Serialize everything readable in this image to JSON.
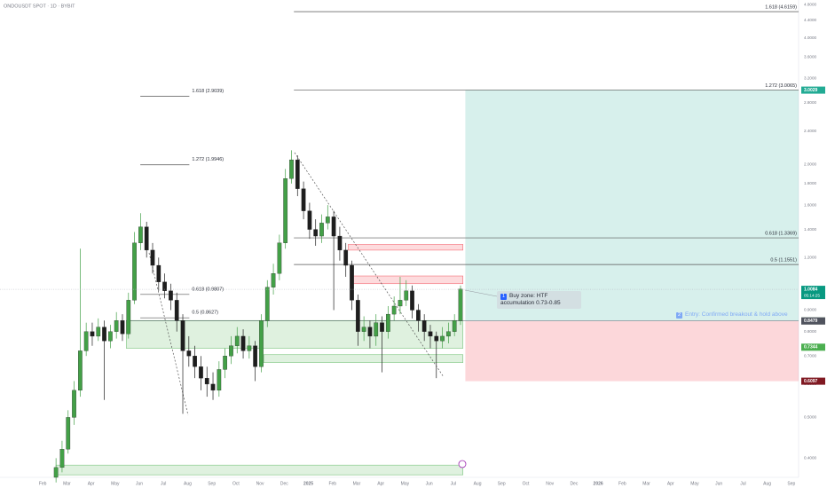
{
  "chart_data": {
    "type": "candlestick",
    "title": "ONDOUSDT SPOT · 1D · BYBIT",
    "log_scale": true,
    "grid": false,
    "xlim": [
      -1.77,
      31.3
    ],
    "ylim": [
      0.36,
      4.92
    ],
    "xticks": [
      {
        "value": 0,
        "label": "Feb"
      },
      {
        "value": 1,
        "label": "Mar"
      },
      {
        "value": 2,
        "label": "Apr"
      },
      {
        "value": 3,
        "label": "May"
      },
      {
        "value": 4,
        "label": "Jun"
      },
      {
        "value": 5,
        "label": "Jul"
      },
      {
        "value": 6,
        "label": "Aug"
      },
      {
        "value": 7,
        "label": "Sep"
      },
      {
        "value": 8,
        "label": "Oct"
      },
      {
        "value": 9,
        "label": "Nov"
      },
      {
        "value": 10,
        "label": "Dec"
      },
      {
        "value": 11,
        "label": "2025"
      },
      {
        "value": 12,
        "label": "Feb"
      },
      {
        "value": 13,
        "label": "Mar"
      },
      {
        "value": 14,
        "label": "Apr"
      },
      {
        "value": 15,
        "label": "May"
      },
      {
        "value": 16,
        "label": "Jun"
      },
      {
        "value": 17,
        "label": "Jul"
      },
      {
        "value": 18,
        "label": "Aug"
      },
      {
        "value": 19,
        "label": "Sep"
      },
      {
        "value": 20,
        "label": "Oct"
      },
      {
        "value": 21,
        "label": "Nov"
      },
      {
        "value": 22,
        "label": "Dec"
      },
      {
        "value": 23,
        "label": "2026"
      },
      {
        "value": 24,
        "label": "Feb"
      },
      {
        "value": 25,
        "label": "Mar"
      },
      {
        "value": 26,
        "label": "Apr"
      },
      {
        "value": 27,
        "label": "May"
      },
      {
        "value": 28,
        "label": "Jun"
      },
      {
        "value": 29,
        "label": "Jul"
      },
      {
        "value": 30,
        "label": "Aug"
      },
      {
        "value": 31,
        "label": "Sep"
      }
    ],
    "yticks": [
      {
        "value": 0.4,
        "label": "0.4000"
      },
      {
        "value": 0.5,
        "label": "0.5000"
      },
      {
        "value": 0.6,
        "label": "0.6000"
      },
      {
        "value": 0.7,
        "label": "0.7000"
      },
      {
        "value": 0.8,
        "label": "0.8000"
      },
      {
        "value": 0.9,
        "label": "0.9000"
      },
      {
        "value": 1.2,
        "label": "1.2000"
      },
      {
        "value": 1.4,
        "label": "1.4000"
      },
      {
        "value": 1.6,
        "label": "1.6000"
      },
      {
        "value": 1.8,
        "label": "1.8000"
      },
      {
        "value": 2,
        "label": "2.0000"
      },
      {
        "value": 2.4,
        "label": "2.4000"
      },
      {
        "value": 2.8,
        "label": "2.8000"
      },
      {
        "value": 3.2,
        "label": "3.2000"
      },
      {
        "value": 3.6,
        "label": "3.6000"
      },
      {
        "value": 4,
        "label": "4.0000"
      },
      {
        "value": 4.4,
        "label": "4.4000"
      },
      {
        "value": 4.8,
        "label": "4.8000"
      }
    ],
    "candles": {
      "up_color": "#43a047",
      "down_color": "#1e1e1e",
      "x": [
        0.55,
        0.8,
        1.05,
        1.3,
        1.55,
        1.8,
        2.05,
        2.3,
        2.55,
        2.8,
        3.05,
        3.3,
        3.55,
        3.8,
        4.05,
        4.3,
        4.55,
        4.8,
        5.05,
        5.3,
        5.55,
        5.8,
        6.05,
        6.3,
        6.55,
        6.8,
        7.05,
        7.3,
        7.55,
        7.8,
        8.05,
        8.3,
        8.55,
        8.8,
        9.05,
        9.3,
        9.55,
        9.8,
        10.05,
        10.3,
        10.55,
        10.8,
        11.05,
        11.3,
        11.55,
        11.8,
        12.05,
        12.3,
        12.55,
        12.8,
        13.05,
        13.3,
        13.55,
        13.8,
        14.05,
        14.3,
        14.55,
        14.8,
        15.05,
        15.3,
        15.55,
        15.8,
        16.05,
        16.3,
        16.55,
        16.8,
        17.05,
        17.3
      ],
      "open": [
        0.36,
        0.38,
        0.42,
        0.5,
        0.58,
        0.72,
        0.8,
        0.78,
        0.82,
        0.76,
        0.8,
        0.85,
        0.79,
        0.95,
        1.3,
        1.42,
        1.25,
        1.15,
        1.05,
        1.0,
        0.95,
        0.85,
        0.72,
        0.7,
        0.66,
        0.62,
        0.6,
        0.58,
        0.65,
        0.7,
        0.74,
        0.78,
        0.72,
        0.74,
        0.66,
        0.85,
        1.02,
        1.1,
        1.3,
        1.85,
        2.05,
        1.75,
        1.55,
        1.4,
        1.35,
        1.45,
        1.5,
        1.35,
        1.25,
        1.15,
        0.95,
        0.8,
        0.82,
        0.78,
        0.84,
        0.8,
        0.88,
        0.92,
        0.95,
        1.0,
        0.9,
        0.85,
        0.8,
        0.78,
        0.76,
        0.78,
        0.8,
        0.85
      ],
      "high": [
        0.4,
        0.44,
        0.52,
        0.61,
        1.26,
        0.84,
        0.84,
        0.86,
        0.85,
        0.83,
        0.89,
        0.88,
        0.99,
        1.38,
        1.53,
        1.46,
        1.3,
        1.2,
        1.1,
        1.04,
        0.99,
        0.88,
        0.78,
        0.74,
        0.7,
        0.66,
        0.64,
        0.68,
        0.73,
        0.78,
        0.82,
        0.81,
        0.78,
        0.76,
        0.88,
        1.06,
        1.16,
        1.36,
        1.95,
        2.16,
        2.1,
        1.82,
        1.62,
        1.48,
        1.52,
        1.6,
        1.55,
        1.42,
        1.3,
        1.18,
        0.98,
        0.87,
        0.85,
        0.88,
        0.87,
        0.92,
        0.97,
        1.08,
        1.06,
        1.03,
        0.93,
        0.88,
        0.83,
        0.8,
        0.82,
        0.84,
        0.88,
        1.03
      ],
      "low": [
        0.35,
        0.37,
        0.41,
        0.48,
        0.56,
        0.7,
        0.74,
        0.76,
        0.55,
        0.73,
        0.77,
        0.76,
        0.77,
        0.93,
        1.25,
        1.2,
        1.1,
        1.0,
        0.96,
        0.9,
        0.8,
        0.51,
        0.66,
        0.62,
        0.58,
        0.56,
        0.55,
        0.56,
        0.62,
        0.67,
        0.71,
        0.69,
        0.69,
        0.61,
        0.64,
        0.82,
        0.98,
        1.06,
        1.26,
        1.8,
        1.68,
        1.48,
        1.33,
        1.28,
        1.3,
        1.4,
        0.9,
        1.18,
        1.08,
        0.9,
        0.74,
        0.76,
        0.73,
        0.74,
        0.64,
        0.77,
        0.85,
        0.88,
        0.92,
        0.86,
        0.8,
        0.76,
        0.73,
        0.62,
        0.73,
        0.75,
        0.78,
        0.83
      ],
      "close": [
        0.38,
        0.42,
        0.5,
        0.58,
        0.72,
        0.8,
        0.78,
        0.82,
        0.76,
        0.8,
        0.85,
        0.79,
        0.95,
        1.3,
        1.42,
        1.25,
        1.15,
        1.05,
        1.0,
        0.95,
        0.85,
        0.72,
        0.7,
        0.66,
        0.62,
        0.6,
        0.58,
        0.65,
        0.7,
        0.74,
        0.78,
        0.72,
        0.74,
        0.66,
        0.85,
        1.02,
        1.1,
        1.3,
        1.85,
        2.05,
        1.75,
        1.55,
        1.4,
        1.35,
        1.45,
        1.5,
        1.35,
        1.25,
        1.15,
        0.95,
        0.8,
        0.82,
        0.78,
        0.84,
        0.8,
        0.88,
        0.92,
        0.95,
        1.0,
        0.9,
        0.85,
        0.8,
        0.78,
        0.76,
        0.78,
        0.8,
        0.85,
        1.01
      ]
    },
    "fib_levels": [
      {
        "label": "1.618 (4.6159)",
        "value": 4.6159,
        "x": [
          10.4,
          31.3
        ]
      },
      {
        "label": "1.272 (3.0065)",
        "value": 3.0065,
        "x": [
          10.4,
          31.3
        ]
      },
      {
        "label": "0.618 (1.3369)",
        "value": 1.3369,
        "x": [
          10.4,
          31.3
        ]
      },
      {
        "label": "0.5 (1.1551)",
        "value": 1.1551,
        "x": [
          10.4,
          31.3
        ]
      },
      {
        "label": "1.618 (2.9039)",
        "value": 2.9039,
        "x": [
          4.04,
          6.07
        ]
      },
      {
        "label": "1.272 (1.9946)",
        "value": 1.9946,
        "x": [
          4.04,
          6.07
        ]
      },
      {
        "label": "0.618 (0.9807)",
        "value": 0.9807,
        "x": [
          4.04,
          6.07
        ]
      },
      {
        "label": "0.5 (0.8627)",
        "value": 0.8627,
        "x": [
          4.04,
          6.07
        ]
      }
    ],
    "zones": [
      {
        "top": 0.85,
        "bottom": 0.73,
        "x": [
          3.46,
          17.4
        ],
        "color": "#4caf50"
      },
      {
        "top": 0.705,
        "bottom": 0.675,
        "x": [
          9.15,
          17.4
        ],
        "color": "#4caf50"
      },
      {
        "top": 0.385,
        "bottom": 0.365,
        "x": [
          0.55,
          17.4
        ],
        "color": "#4caf50"
      },
      {
        "top": 1.29,
        "bottom": 1.25,
        "x": [
          12.65,
          17.4
        ],
        "color": "#f23645"
      },
      {
        "top": 1.085,
        "bottom": 1.04,
        "x": [
          12.75,
          17.4
        ],
        "color": "#f23645"
      }
    ],
    "position": {
      "target": 3.0029,
      "entry": 0.8483,
      "stop": 0.6097,
      "x": [
        17.5,
        31.3
      ],
      "profit_color": "#22ab94",
      "loss_color": "#f23645"
    },
    "last_price": {
      "value": 1.0084,
      "countdown": "05:14:25",
      "color": "#089981"
    },
    "price_labels": [
      {
        "value": 3.0029,
        "color": "#22ab94"
      },
      {
        "value": 0.8483,
        "color": "#6b8e6f"
      },
      {
        "value": 0.8479,
        "color": "#50535e"
      },
      {
        "value": 0.7344,
        "color": "#4caf50"
      },
      {
        "value": 0.6097,
        "color": "#801922"
      }
    ],
    "annotations": [
      {
        "badge": "1",
        "lines": [
          "Buy zone: HTF",
          "accumulation 0.73-0.85"
        ]
      },
      {
        "badge": "2",
        "lines": [
          "Entry: Confirmed breakout & hold above"
        ]
      }
    ]
  }
}
